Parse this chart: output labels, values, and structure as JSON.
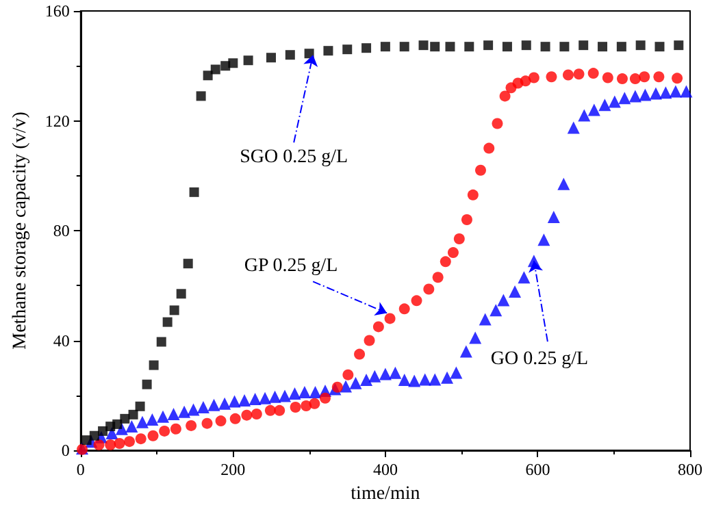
{
  "chart_data": {
    "type": "scatter",
    "xlabel": "time/min",
    "ylabel": "Methane storage capacity (v/v)",
    "xlim": [
      0,
      800
    ],
    "xticks": [
      0,
      200,
      400,
      600,
      800
    ],
    "ylim": [
      0,
      160
    ],
    "yticks": [
      0,
      40,
      80,
      120,
      160
    ],
    "grid": false,
    "series": [
      {
        "color": "#000000",
        "marker": "square",
        "x": [
          8,
          18,
          29,
          39,
          48,
          58,
          69,
          78,
          87,
          96,
          106,
          114,
          123,
          132,
          141,
          149,
          158,
          167,
          177,
          190,
          200,
          220,
          250,
          275,
          300,
          325,
          350,
          375,
          400,
          425,
          450,
          465,
          485,
          510,
          535,
          560,
          585,
          610,
          635,
          660,
          685,
          710,
          735,
          760,
          785
        ],
        "values": [
          3.7,
          5.3,
          7,
          8.7,
          9.5,
          11.5,
          13,
          16,
          24,
          31,
          39.5,
          46.7,
          51,
          57,
          68,
          94,
          129,
          136.5,
          138.7,
          140,
          141,
          142,
          143,
          144,
          144.5,
          145.5,
          146,
          146.5,
          147,
          147,
          147.5,
          147,
          147,
          147,
          147.5,
          147,
          147.5,
          147,
          147,
          147.5,
          147,
          147,
          147.5,
          147,
          147.5
        ]
      },
      {
        "color": "#ff0000",
        "marker": "circle",
        "x": [
          2,
          24,
          39,
          51,
          64,
          79,
          95,
          110,
          125,
          145,
          166,
          184,
          203,
          218,
          231,
          249,
          261,
          282,
          296,
          307,
          321,
          337,
          351,
          366,
          379,
          391,
          406,
          425,
          441,
          457,
          469,
          479,
          489,
          497,
          507,
          515,
          525,
          536,
          547,
          557,
          565,
          574,
          584,
          595,
          618,
          640,
          654,
          673,
          692,
          711,
          728,
          740,
          759,
          783
        ],
        "values": [
          0.3,
          2,
          2,
          2.5,
          3.2,
          4.2,
          5.3,
          7,
          7.8,
          9,
          9.8,
          10.7,
          11.5,
          12.8,
          13.2,
          14.5,
          14.5,
          15.7,
          16.2,
          17,
          19,
          23,
          27.5,
          35,
          40,
          45,
          48,
          51.5,
          54.5,
          58.7,
          63,
          68.7,
          72,
          77,
          84,
          93,
          102,
          110,
          119,
          129,
          132,
          133.7,
          134.5,
          135.7,
          136,
          136.7,
          137,
          137.3,
          135.7,
          135.3,
          135.3,
          136,
          136,
          135.5
        ]
      },
      {
        "color": "#0000ff",
        "marker": "triangle",
        "x": [
          2,
          14,
          27,
          41,
          54,
          67,
          81,
          94,
          108,
          122,
          136,
          148,
          161,
          175,
          189,
          202,
          215,
          229,
          242,
          255,
          268,
          281,
          294,
          308,
          321,
          334,
          348,
          361,
          375,
          386,
          400,
          413,
          425,
          438,
          452,
          465,
          481,
          493,
          506,
          518,
          531,
          545,
          555,
          570,
          582,
          595,
          608,
          621,
          634,
          647,
          661,
          674,
          688,
          701,
          714,
          728,
          741,
          755,
          768,
          781,
          795
        ],
        "values": [
          0.7,
          3.2,
          4.8,
          6.2,
          7.8,
          8.7,
          10.3,
          11.2,
          12.3,
          13.2,
          14,
          14.8,
          15.7,
          16.5,
          17,
          17.8,
          18.2,
          18.7,
          19,
          19.5,
          19.8,
          20.7,
          21.2,
          21.2,
          21.7,
          22.3,
          23.3,
          24.5,
          25.7,
          27,
          27.8,
          28.2,
          25.7,
          25.3,
          25.8,
          25.8,
          26.5,
          28.3,
          36,
          41,
          47.7,
          51,
          54.7,
          57.8,
          63,
          69,
          76.7,
          85,
          97,
          117.5,
          122,
          124,
          125.8,
          127,
          128.3,
          129,
          129.5,
          130,
          130.3,
          130.7,
          130.7
        ]
      }
    ],
    "annotations": [
      {
        "text": "SGO 0.25 g/L",
        "x": 305,
        "y": 144
      },
      {
        "text": "GP 0.25 g/L",
        "x": 402,
        "y": 50
      },
      {
        "text": "GO 0.25 g/L",
        "x": 595,
        "y": 69
      }
    ]
  }
}
